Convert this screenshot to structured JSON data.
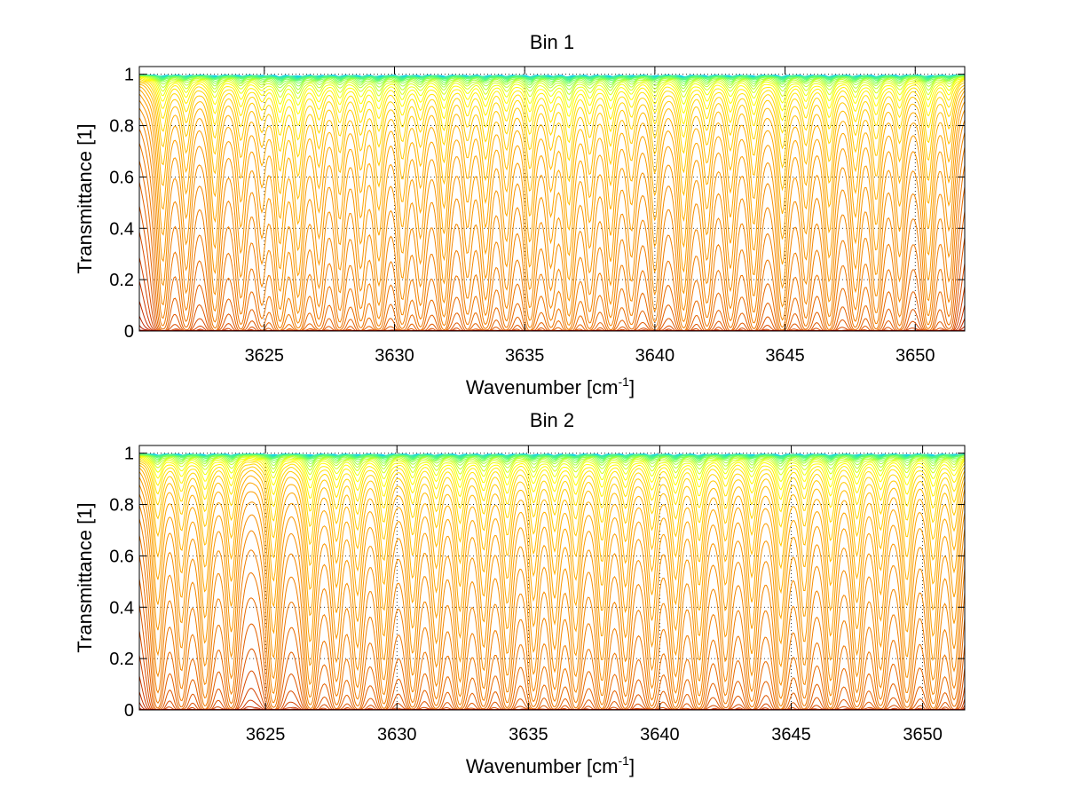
{
  "figure": {
    "background": "#ffffff"
  },
  "chart_data": [
    {
      "type": "line",
      "title": "Bin 1",
      "xlabel": "Wavenumber [cm",
      "xlabel_sup": "-1",
      "xlabel_end": "]",
      "ylabel": "Transmittance [1]",
      "xlim": [
        3620.2,
        3651.9
      ],
      "ylim": [
        0,
        1.03
      ],
      "xticks": [
        3625,
        3630,
        3635,
        3640,
        3645,
        3650
      ],
      "xtick_labels": [
        "3625",
        "3630",
        "3635",
        "3640",
        "3645",
        "3650"
      ],
      "yticks": [
        0,
        0.2,
        0.4,
        0.6,
        0.8,
        1
      ],
      "ytick_labels": [
        "0",
        "0.2",
        "0.4",
        "0.6",
        "0.8",
        "1"
      ],
      "grid": true,
      "colormap": [
        "#0000cc",
        "#00ccff",
        "#66ff66",
        "#ffff00",
        "#ffaa00",
        "#ee7700",
        "#cc3300",
        "#990000"
      ],
      "series_count": 40,
      "absorption_lines": [
        {
          "x": 3621.1,
          "depth": 0.9
        },
        {
          "x": 3622.0,
          "depth": 0.7
        },
        {
          "x": 3623.1,
          "depth": 1.0
        },
        {
          "x": 3624.1,
          "depth": 0.75
        },
        {
          "x": 3624.9,
          "depth": 0.55
        },
        {
          "x": 3625.6,
          "depth": 1.2
        },
        {
          "x": 3626.3,
          "depth": 1.3
        },
        {
          "x": 3627.1,
          "depth": 0.8
        },
        {
          "x": 3627.9,
          "depth": 0.9
        },
        {
          "x": 3628.7,
          "depth": 0.85
        },
        {
          "x": 3629.4,
          "depth": 1.1
        },
        {
          "x": 3630.3,
          "depth": 1.0
        },
        {
          "x": 3631.0,
          "depth": 0.8
        },
        {
          "x": 3631.9,
          "depth": 1.1
        },
        {
          "x": 3632.8,
          "depth": 0.7
        },
        {
          "x": 3633.5,
          "depth": 1.0
        },
        {
          "x": 3634.3,
          "depth": 0.85
        },
        {
          "x": 3635.2,
          "depth": 1.2
        },
        {
          "x": 3636.0,
          "depth": 0.8
        },
        {
          "x": 3636.7,
          "depth": 1.4
        },
        {
          "x": 3637.5,
          "depth": 0.9
        },
        {
          "x": 3638.3,
          "depth": 1.1
        },
        {
          "x": 3639.1,
          "depth": 0.75
        },
        {
          "x": 3640.0,
          "depth": 0.95
        },
        {
          "x": 3641.1,
          "depth": 1.3
        },
        {
          "x": 3642.0,
          "depth": 0.8
        },
        {
          "x": 3642.9,
          "depth": 0.9
        },
        {
          "x": 3643.8,
          "depth": 1.0
        },
        {
          "x": 3644.9,
          "depth": 1.2
        },
        {
          "x": 3645.8,
          "depth": 0.8
        },
        {
          "x": 3646.7,
          "depth": 1.1
        },
        {
          "x": 3647.7,
          "depth": 0.9
        },
        {
          "x": 3648.5,
          "depth": 1.0
        },
        {
          "x": 3649.4,
          "depth": 0.8
        },
        {
          "x": 3650.5,
          "depth": 1.1
        },
        {
          "x": 3651.3,
          "depth": 0.6
        }
      ]
    },
    {
      "type": "line",
      "title": "Bin 2",
      "xlabel": "Wavenumber [cm",
      "xlabel_sup": "-1",
      "xlabel_end": "]",
      "ylabel": "Transmittance [1]",
      "xlim": [
        3620.2,
        3651.6
      ],
      "ylim": [
        0,
        1.03
      ],
      "xticks": [
        3625,
        3630,
        3635,
        3640,
        3645,
        3650
      ],
      "xtick_labels": [
        "3625",
        "3630",
        "3635",
        "3640",
        "3645",
        "3650"
      ],
      "yticks": [
        0,
        0.2,
        0.4,
        0.6,
        0.8,
        1
      ],
      "ytick_labels": [
        "0",
        "0.2",
        "0.4",
        "0.6",
        "0.8",
        "1"
      ],
      "grid": true,
      "colormap": [
        "#0000cc",
        "#00ccff",
        "#66ff66",
        "#ffff00",
        "#ffaa00",
        "#ee7700",
        "#cc3300",
        "#990000"
      ],
      "series_count": 40,
      "absorption_lines": [
        {
          "x": 3620.9,
          "depth": 0.8
        },
        {
          "x": 3621.8,
          "depth": 0.7
        },
        {
          "x": 3622.7,
          "depth": 0.9
        },
        {
          "x": 3623.7,
          "depth": 0.8
        },
        {
          "x": 3625.3,
          "depth": 1.1
        },
        {
          "x": 3626.7,
          "depth": 1.2
        },
        {
          "x": 3627.7,
          "depth": 0.8
        },
        {
          "x": 3628.5,
          "depth": 0.9
        },
        {
          "x": 3629.5,
          "depth": 1.1
        },
        {
          "x": 3630.6,
          "depth": 1.0
        },
        {
          "x": 3631.5,
          "depth": 0.85
        },
        {
          "x": 3632.4,
          "depth": 1.1
        },
        {
          "x": 3633.3,
          "depth": 0.9
        },
        {
          "x": 3634.2,
          "depth": 1.0
        },
        {
          "x": 3635.2,
          "depth": 0.95
        },
        {
          "x": 3636.0,
          "depth": 0.9
        },
        {
          "x": 3636.8,
          "depth": 1.0
        },
        {
          "x": 3637.8,
          "depth": 1.1
        },
        {
          "x": 3638.7,
          "depth": 0.8
        },
        {
          "x": 3639.7,
          "depth": 0.9
        },
        {
          "x": 3640.6,
          "depth": 1.0
        },
        {
          "x": 3641.5,
          "depth": 1.1
        },
        {
          "x": 3642.5,
          "depth": 0.8
        },
        {
          "x": 3643.5,
          "depth": 1.0
        },
        {
          "x": 3644.6,
          "depth": 1.2
        },
        {
          "x": 3645.5,
          "depth": 0.85
        },
        {
          "x": 3646.5,
          "depth": 1.1
        },
        {
          "x": 3647.5,
          "depth": 1.0
        },
        {
          "x": 3648.4,
          "depth": 0.9
        },
        {
          "x": 3649.4,
          "depth": 1.05
        },
        {
          "x": 3650.4,
          "depth": 1.1
        },
        {
          "x": 3651.2,
          "depth": 0.7
        }
      ]
    }
  ]
}
